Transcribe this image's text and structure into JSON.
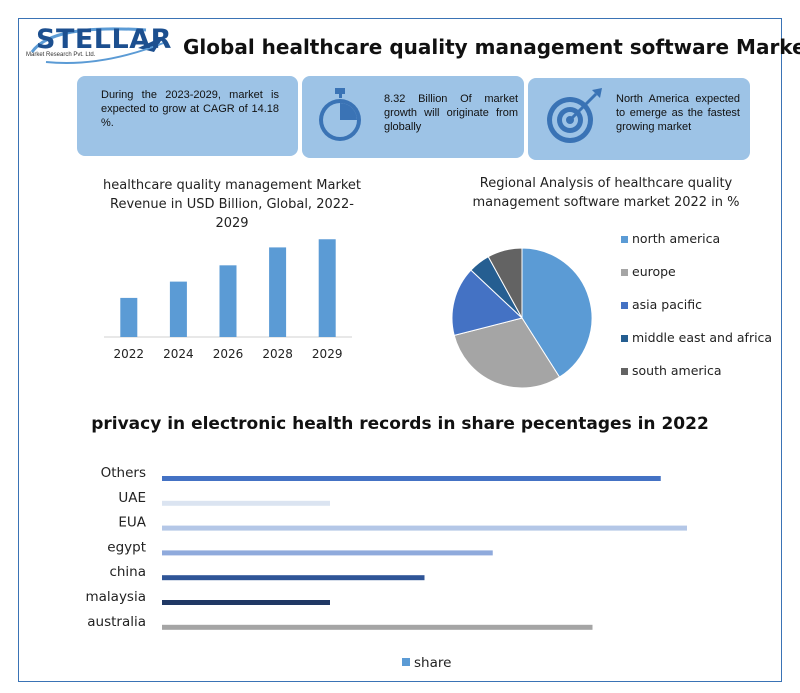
{
  "brand": {
    "logo_text": "STELLAR",
    "logo_subtext": "Market Research Pvt. Ltd."
  },
  "title": "Global healthcare quality management software Market",
  "info_boxes": [
    {
      "text": "During the 2023-2029, market is expected to grow at CAGR of 14.18 %.",
      "icon": ""
    },
    {
      "text": "8.32 Billion Of market growth will originate from globally",
      "icon": "stopwatch-icon"
    },
    {
      "text": "North America expected to emerge as the fastest growing market",
      "icon": "target-icon"
    }
  ],
  "colors": {
    "accent": "#5b9bd5",
    "box_bg": "#9dc3e6",
    "frame": "#3a73b5"
  },
  "chart_data": [
    {
      "type": "bar",
      "title": "healthcare quality management Market Revenue in USD Billion, Global, 2022-2029",
      "categories": [
        "2022",
        "2024",
        "2026",
        "2028",
        "2029"
      ],
      "values": [
        2.4,
        3.4,
        4.4,
        5.5,
        6.0
      ],
      "ylim": [
        0,
        6.2
      ],
      "grid": false,
      "color": "#5b9bd5"
    },
    {
      "type": "pie",
      "title": "Regional Analysis of healthcare quality management software market 2022 in %",
      "labels": [
        "north america",
        "europe",
        "asia pacific",
        "middle east and africa",
        "south america"
      ],
      "values": [
        41,
        30,
        16,
        5,
        8
      ],
      "colors": [
        "#5b9bd5",
        "#a5a5a5",
        "#4472c4",
        "#255e91",
        "#636363"
      ],
      "legend": "right"
    },
    {
      "type": "bar",
      "orientation": "horizontal",
      "title": "privacy in electronic health records in share pecentages in 2022",
      "categories": [
        "Others",
        "UAE",
        "EUA",
        "egypt",
        "china",
        "malaysia",
        "australia"
      ],
      "values": [
        95,
        32,
        100,
        63,
        50,
        32,
        82
      ],
      "colors": [
        "#4472c4",
        "#dbe4f1",
        "#b4c7e7",
        "#8faadc",
        "#2f5597",
        "#203864",
        "#a5a5a5"
      ],
      "legend": "bottom",
      "series": [
        {
          "name": "share"
        }
      ]
    }
  ]
}
